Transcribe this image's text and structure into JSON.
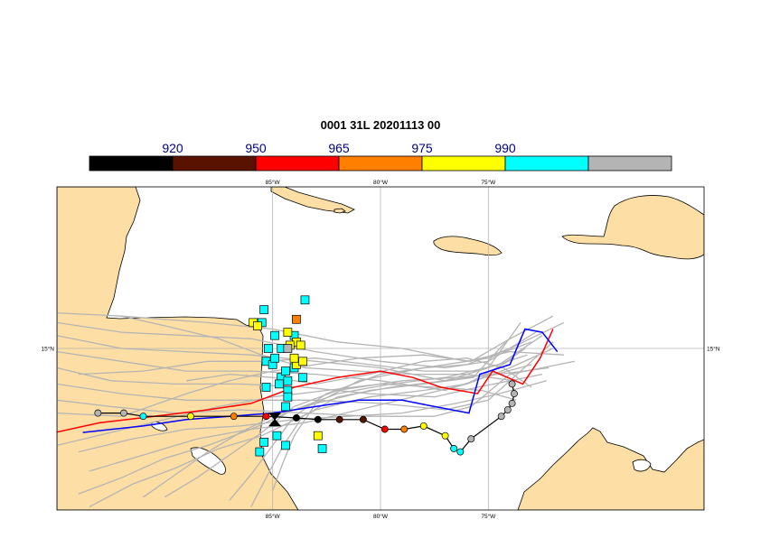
{
  "title": "0001 31L 20201113 00",
  "colorbar": {
    "segments": [
      {
        "color": "#000000"
      },
      {
        "color": "#5a1200"
      },
      {
        "color": "#ff0000"
      },
      {
        "color": "#ff8000"
      },
      {
        "color": "#ffff00"
      },
      {
        "color": "#00ffff"
      },
      {
        "color": "#b4b4b4"
      }
    ],
    "labels": [
      "920",
      "950",
      "965",
      "975",
      "990"
    ],
    "label_color": "#000080"
  },
  "map": {
    "lon_range": [
      -95,
      -65
    ],
    "lat_range": [
      10,
      20
    ],
    "lon_ticks": [
      {
        "value": -85,
        "label": "85°W"
      },
      {
        "value": -80,
        "label": "80°W"
      },
      {
        "value": -75,
        "label": "75°W"
      }
    ],
    "lat_ticks": [
      {
        "value": 15,
        "label": "15°N"
      }
    ],
    "land_color": "#fddfa5",
    "ocean_color": "#ffffff",
    "grid_color": "#b4b4b4",
    "ensemble_color": "#b4b4b4",
    "red_track_color": "#ff0000",
    "blue_track_color": "#0000ff",
    "observed_track_color": "#000000",
    "observed_track_points": [
      {
        "lon": -93.1,
        "lat": 13.0,
        "color": "#b4b4b4"
      },
      {
        "lon": -91.9,
        "lat": 13.0,
        "color": "#b4b4b4"
      },
      {
        "lon": -91.0,
        "lat": 12.9,
        "color": "#00ffff"
      },
      {
        "lon": -88.8,
        "lat": 12.9,
        "color": "#ffff00"
      },
      {
        "lon": -86.8,
        "lat": 12.9,
        "color": "#ff8000"
      },
      {
        "lon": -85.3,
        "lat": 12.9,
        "color": "#ff0000"
      },
      {
        "lon": -83.9,
        "lat": 12.85,
        "color": "#000000"
      },
      {
        "lon": -82.9,
        "lat": 12.8,
        "color": "#000000"
      },
      {
        "lon": -81.9,
        "lat": 12.8,
        "color": "#5a1200"
      },
      {
        "lon": -80.8,
        "lat": 12.8,
        "color": "#5a1200"
      },
      {
        "lon": -79.8,
        "lat": 12.5,
        "color": "#ff0000"
      },
      {
        "lon": -78.9,
        "lat": 12.5,
        "color": "#ff8000"
      },
      {
        "lon": -78.0,
        "lat": 12.6,
        "color": "#ffff00"
      },
      {
        "lon": -77.0,
        "lat": 12.3,
        "color": "#ffff00"
      },
      {
        "lon": -76.6,
        "lat": 11.9,
        "color": "#00ffff"
      },
      {
        "lon": -76.3,
        "lat": 11.8,
        "color": "#00ffff"
      },
      {
        "lon": -75.8,
        "lat": 12.2,
        "color": "#b4b4b4"
      },
      {
        "lon": -74.4,
        "lat": 12.9,
        "color": "#b4b4b4"
      },
      {
        "lon": -74.1,
        "lat": 13.1,
        "color": "#b4b4b4"
      },
      {
        "lon": -73.9,
        "lat": 13.3,
        "color": "#b4b4b4"
      },
      {
        "lon": -73.8,
        "lat": 13.6,
        "color": "#b4b4b4"
      },
      {
        "lon": -73.9,
        "lat": 13.9,
        "color": "#b4b4b4"
      }
    ],
    "current_position": {
      "lon": -84.9,
      "lat": 12.8
    },
    "red_track": [
      [
        -95.1,
        12.4
      ],
      [
        -93.0,
        12.7
      ],
      [
        -90.5,
        12.9
      ],
      [
        -88.0,
        13.1
      ],
      [
        -86.0,
        13.3
      ],
      [
        -84.0,
        13.8
      ],
      [
        -82.0,
        14.1
      ],
      [
        -80.0,
        14.3
      ],
      [
        -78.5,
        14.1
      ],
      [
        -77.2,
        13.8
      ],
      [
        -75.5,
        13.6
      ],
      [
        -74.8,
        14.3
      ],
      [
        -73.4,
        13.9
      ],
      [
        -72.6,
        14.7
      ],
      [
        -72.0,
        15.6
      ]
    ],
    "blue_track": [
      [
        -93.8,
        12.4
      ],
      [
        -91.0,
        12.6
      ],
      [
        -89.0,
        12.8
      ],
      [
        -87.0,
        12.9
      ],
      [
        -85.0,
        13.0
      ],
      [
        -83.0,
        13.2
      ],
      [
        -81.0,
        13.4
      ],
      [
        -79.0,
        13.4
      ],
      [
        -77.5,
        13.2
      ],
      [
        -75.9,
        13.0
      ],
      [
        -75.4,
        14.2
      ],
      [
        -74.0,
        14.5
      ],
      [
        -73.3,
        15.6
      ],
      [
        -72.5,
        15.5
      ],
      [
        -71.8,
        14.9
      ]
    ],
    "cyan_squares": [
      [
        -85.5,
        15.8
      ],
      [
        -84.9,
        15.4
      ],
      [
        -85.2,
        15.0
      ],
      [
        -85.3,
        14.6
      ],
      [
        -85.0,
        14.5
      ],
      [
        -84.6,
        14.1
      ],
      [
        -84.3,
        14.0
      ],
      [
        -84.4,
        14.3
      ],
      [
        -84.7,
        13.9
      ],
      [
        -85.3,
        13.8
      ],
      [
        -84.9,
        14.7
      ],
      [
        -84.6,
        15.0
      ],
      [
        -84.0,
        14.4
      ],
      [
        -84.3,
        13.7
      ],
      [
        -84.4,
        13.2
      ],
      [
        -84.8,
        12.3
      ],
      [
        -85.4,
        12.1
      ],
      [
        -84.4,
        12.0
      ],
      [
        -82.7,
        11.9
      ],
      [
        -85.4,
        16.2
      ],
      [
        -83.5,
        16.5
      ],
      [
        -84.0,
        15.4
      ],
      [
        -85.6,
        11.8
      ],
      [
        -84.3,
        13.5
      ],
      [
        -83.6,
        14.1
      ]
    ],
    "yellow_squares": [
      [
        -85.9,
        15.8
      ],
      [
        -85.7,
        15.7
      ],
      [
        -84.3,
        15.5
      ],
      [
        -83.9,
        15.2
      ],
      [
        -84.2,
        15.1
      ],
      [
        -83.7,
        15.1
      ],
      [
        -83.9,
        14.5
      ],
      [
        -84.0,
        14.7
      ],
      [
        -82.9,
        12.3
      ],
      [
        -83.6,
        14.6
      ]
    ],
    "orange_squares": [
      [
        -83.9,
        15.9
      ]
    ],
    "gray_squares": [
      [
        -84.3,
        15.0
      ]
    ],
    "ensemble_tracks": [
      [
        [
          -95.0,
          16.1
        ],
        [
          -92.0,
          16.0
        ],
        [
          -88.0,
          15.8
        ],
        [
          -85.0,
          15.6
        ],
        [
          -82.0,
          15.2
        ],
        [
          -79.0,
          15.0
        ],
        [
          -76.0,
          14.6
        ],
        [
          -74.0,
          14.9
        ],
        [
          -71.5,
          14.8
        ]
      ],
      [
        [
          -95.0,
          15.8
        ],
        [
          -92.0,
          15.5
        ],
        [
          -89.0,
          15.4
        ],
        [
          -86.0,
          15.3
        ],
        [
          -83.0,
          14.9
        ],
        [
          -80.0,
          14.6
        ],
        [
          -77.0,
          14.4
        ],
        [
          -75.0,
          14.6
        ],
        [
          -72.8,
          15.5
        ]
      ],
      [
        [
          -95.0,
          15.4
        ],
        [
          -92.0,
          15.0
        ],
        [
          -89.0,
          14.9
        ],
        [
          -86.0,
          14.8
        ],
        [
          -83.0,
          14.6
        ],
        [
          -80.0,
          14.4
        ],
        [
          -77.0,
          14.0
        ],
        [
          -75.0,
          14.4
        ],
        [
          -73.5,
          15.8
        ]
      ],
      [
        [
          -95.0,
          14.9
        ],
        [
          -92.0,
          14.6
        ],
        [
          -89.0,
          14.3
        ],
        [
          -86.0,
          14.3
        ],
        [
          -83.0,
          14.2
        ],
        [
          -80.0,
          14.0
        ],
        [
          -77.0,
          13.7
        ],
        [
          -75.2,
          14.1
        ],
        [
          -73.0,
          14.5
        ]
      ],
      [
        [
          -95.0,
          14.4
        ],
        [
          -92.5,
          14.0
        ],
        [
          -89.5,
          13.9
        ],
        [
          -86.5,
          13.9
        ],
        [
          -83.5,
          13.8
        ],
        [
          -80.5,
          13.6
        ],
        [
          -77.5,
          13.5
        ],
        [
          -75.5,
          13.8
        ],
        [
          -72.5,
          14.2
        ]
      ],
      [
        [
          -95.0,
          13.9
        ],
        [
          -92.0,
          13.6
        ],
        [
          -89.0,
          13.4
        ],
        [
          -86.0,
          13.4
        ],
        [
          -83.0,
          13.4
        ],
        [
          -80.0,
          13.3
        ],
        [
          -77.0,
          13.1
        ],
        [
          -75.0,
          13.4
        ],
        [
          -72.0,
          15.2
        ]
      ],
      [
        [
          -95.0,
          13.4
        ],
        [
          -92.5,
          13.2
        ],
        [
          -89.5,
          13.0
        ],
        [
          -86.5,
          13.1
        ],
        [
          -83.5,
          13.0
        ],
        [
          -80.5,
          12.9
        ],
        [
          -77.5,
          12.9
        ],
        [
          -75.8,
          13.2
        ],
        [
          -74.0,
          14.2
        ],
        [
          -71.0,
          14.6
        ]
      ],
      [
        [
          -94.0,
          11.8
        ],
        [
          -91.5,
          12.2
        ],
        [
          -89.0,
          12.5
        ],
        [
          -86.5,
          12.6
        ],
        [
          -84.0,
          12.8
        ],
        [
          -81.5,
          12.9
        ],
        [
          -79.0,
          13.0
        ],
        [
          -76.5,
          13.3
        ],
        [
          -74.5,
          13.6
        ],
        [
          -72.3,
          14.0
        ]
      ],
      [
        [
          -93.5,
          11.2
        ],
        [
          -91.0,
          11.7
        ],
        [
          -88.5,
          12.2
        ],
        [
          -86.0,
          12.5
        ],
        [
          -83.5,
          12.7
        ],
        [
          -81.0,
          13.1
        ],
        [
          -78.5,
          13.5
        ],
        [
          -76.0,
          13.9
        ],
        [
          -74.0,
          14.4
        ],
        [
          -72.0,
          15.0
        ]
      ],
      [
        [
          -94.0,
          10.5
        ],
        [
          -92.0,
          11.0
        ],
        [
          -90.0,
          11.6
        ],
        [
          -88.0,
          12.0
        ],
        [
          -86.0,
          12.5
        ],
        [
          -84.0,
          13.1
        ],
        [
          -82.0,
          13.6
        ],
        [
          -79.5,
          13.9
        ],
        [
          -77.0,
          14.1
        ],
        [
          -74.5,
          14.5
        ],
        [
          -72.5,
          15.4
        ]
      ],
      [
        [
          -93.5,
          10.1
        ],
        [
          -91.5,
          10.8
        ],
        [
          -89.5,
          11.3
        ],
        [
          -87.5,
          11.9
        ],
        [
          -85.5,
          12.3
        ],
        [
          -83.0,
          13.1
        ],
        [
          -80.5,
          13.5
        ],
        [
          -78.0,
          13.7
        ],
        [
          -76.0,
          13.9
        ],
        [
          -73.8,
          14.7
        ]
      ],
      [
        [
          -90.0,
          10.4
        ],
        [
          -88.5,
          11.0
        ],
        [
          -87.0,
          11.7
        ],
        [
          -85.5,
          12.4
        ],
        [
          -84.0,
          13.2
        ],
        [
          -82.0,
          13.7
        ],
        [
          -79.0,
          14.0
        ],
        [
          -76.5,
          14.1
        ],
        [
          -74.5,
          14.2
        ],
        [
          -72.2,
          14.4
        ]
      ],
      [
        [
          -87.0,
          10.3
        ],
        [
          -86.0,
          11.1
        ],
        [
          -85.0,
          12.0
        ],
        [
          -84.0,
          12.9
        ],
        [
          -82.5,
          13.6
        ],
        [
          -80.0,
          14.2
        ],
        [
          -77.0,
          14.5
        ],
        [
          -75.0,
          14.7
        ],
        [
          -73.0,
          15.2
        ]
      ],
      [
        [
          -85.0,
          10.6
        ],
        [
          -84.5,
          11.5
        ],
        [
          -84.0,
          12.3
        ],
        [
          -83.0,
          13.3
        ],
        [
          -81.0,
          14.0
        ],
        [
          -78.0,
          14.4
        ],
        [
          -76.0,
          14.5
        ],
        [
          -74.0,
          15.0
        ],
        [
          -71.5,
          15.8
        ]
      ],
      [
        [
          -92.0,
          16.0
        ],
        [
          -90.0,
          15.7
        ],
        [
          -87.5,
          15.3
        ],
        [
          -85.5,
          14.8
        ],
        [
          -83.5,
          14.4
        ],
        [
          -81.0,
          14.3
        ],
        [
          -78.5,
          14.2
        ],
        [
          -76.0,
          14.2
        ],
        [
          -73.8,
          14.0
        ]
      ],
      [
        [
          -94.0,
          14.2
        ],
        [
          -91.0,
          14.3
        ],
        [
          -88.0,
          14.6
        ],
        [
          -85.5,
          14.6
        ],
        [
          -83.0,
          14.7
        ],
        [
          -80.5,
          14.5
        ],
        [
          -78.0,
          14.3
        ],
        [
          -75.5,
          14.3
        ],
        [
          -73.2,
          14.8
        ]
      ],
      [
        [
          -95.0,
          12.0
        ],
        [
          -92.5,
          12.4
        ],
        [
          -90.0,
          12.8
        ],
        [
          -87.5,
          13.2
        ],
        [
          -85.0,
          13.5
        ],
        [
          -82.5,
          13.7
        ],
        [
          -80.0,
          13.9
        ],
        [
          -77.5,
          13.8
        ],
        [
          -75.3,
          13.7
        ],
        [
          -73.7,
          13.4
        ]
      ],
      [
        [
          -89.0,
          14.0
        ],
        [
          -87.0,
          14.2
        ],
        [
          -85.0,
          14.1
        ],
        [
          -83.0,
          13.9
        ],
        [
          -80.5,
          14.2
        ],
        [
          -78.0,
          14.6
        ],
        [
          -76.0,
          14.7
        ],
        [
          -74.3,
          14.4
        ],
        [
          -73.0,
          13.8
        ]
      ],
      [
        [
          -95.0,
          13.0
        ],
        [
          -92.0,
          12.9
        ],
        [
          -89.0,
          13.6
        ],
        [
          -87.0,
          14.0
        ],
        [
          -85.0,
          14.3
        ],
        [
          -83.0,
          14.5
        ],
        [
          -81.0,
          14.7
        ],
        [
          -78.0,
          14.8
        ],
        [
          -75.8,
          14.6
        ],
        [
          -74.0,
          15.3
        ],
        [
          -72.0,
          16.0
        ]
      ],
      [
        [
          -86.0,
          10.1
        ],
        [
          -85.3,
          11.0
        ],
        [
          -84.5,
          12.0
        ],
        [
          -83.6,
          12.9
        ],
        [
          -82.0,
          13.5
        ],
        [
          -79.5,
          13.8
        ],
        [
          -77.0,
          14.0
        ],
        [
          -75.0,
          14.2
        ],
        [
          -73.3,
          15.0
        ]
      ],
      [
        [
          -91.0,
          10.4
        ],
        [
          -89.5,
          11.1
        ],
        [
          -88.0,
          11.8
        ],
        [
          -86.5,
          12.4
        ],
        [
          -85.0,
          12.9
        ],
        [
          -83.0,
          13.3
        ],
        [
          -80.5,
          13.7
        ],
        [
          -78.0,
          13.9
        ],
        [
          -75.7,
          14.1
        ],
        [
          -74.2,
          15.2
        ]
      ]
    ]
  }
}
